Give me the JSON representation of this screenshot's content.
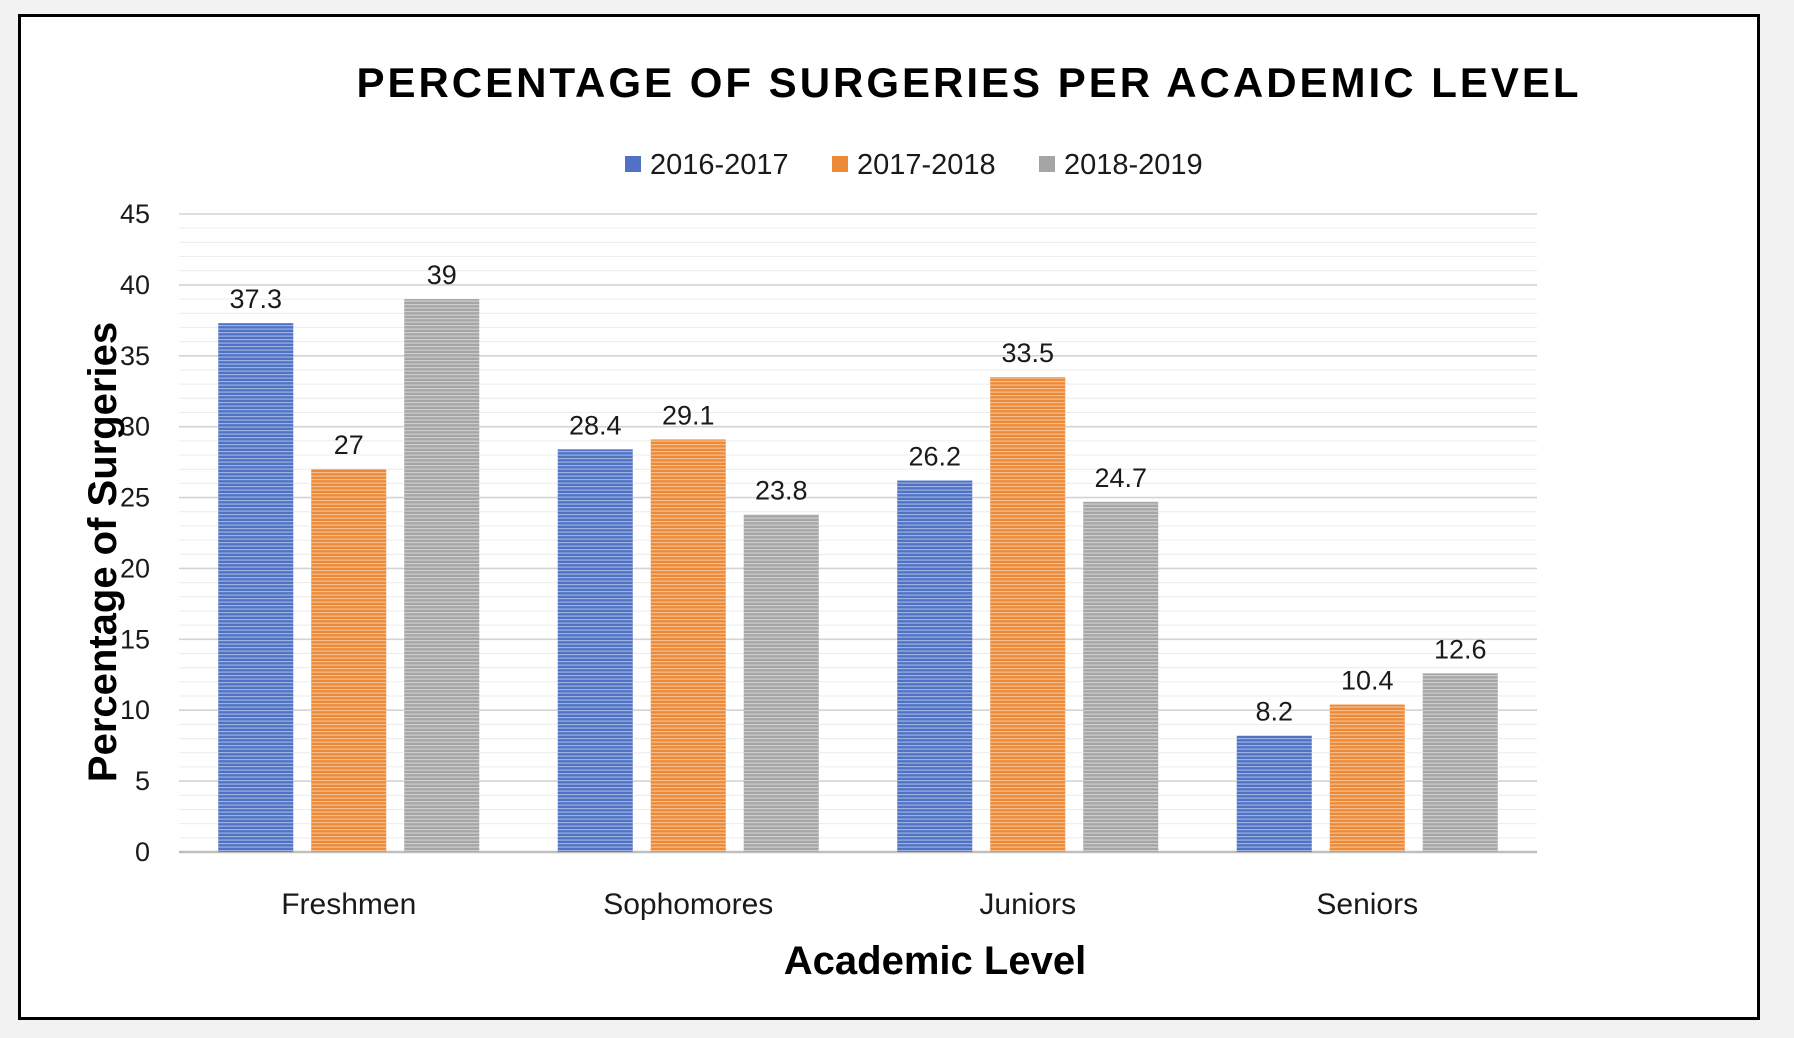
{
  "chart_data": {
    "type": "bar",
    "title": "PERCENTAGE OF SURGERIES PER ACADEMIC LEVEL",
    "xlabel": "Academic Level",
    "ylabel": "Percentage of Surgeries",
    "categories": [
      "Freshmen",
      "Sophomores",
      "Juniors",
      "Seniors"
    ],
    "series": [
      {
        "name": "2016-2017",
        "values": [
          37.3,
          28.4,
          26.2,
          8.2
        ],
        "color": "#4f72c4"
      },
      {
        "name": "2017-2018",
        "values": [
          27,
          29.1,
          33.5,
          10.4
        ],
        "color": "#ed8a37"
      },
      {
        "name": "2018-2019",
        "values": [
          39,
          23.8,
          24.7,
          12.6
        ],
        "color": "#a5a5a5"
      }
    ],
    "data_labels": [
      [
        "37.3",
        "28.4",
        "26.2",
        "8.2"
      ],
      [
        "27",
        "29.1",
        "33.5",
        "10.4"
      ],
      [
        "39",
        "23.8",
        "24.7",
        "12.6"
      ]
    ],
    "ylim": [
      0,
      45
    ],
    "yticks": [
      "0",
      "5",
      "10",
      "15",
      "20",
      "25",
      "30",
      "35",
      "40",
      "45"
    ],
    "grid": true,
    "legend_position": "top-center"
  }
}
